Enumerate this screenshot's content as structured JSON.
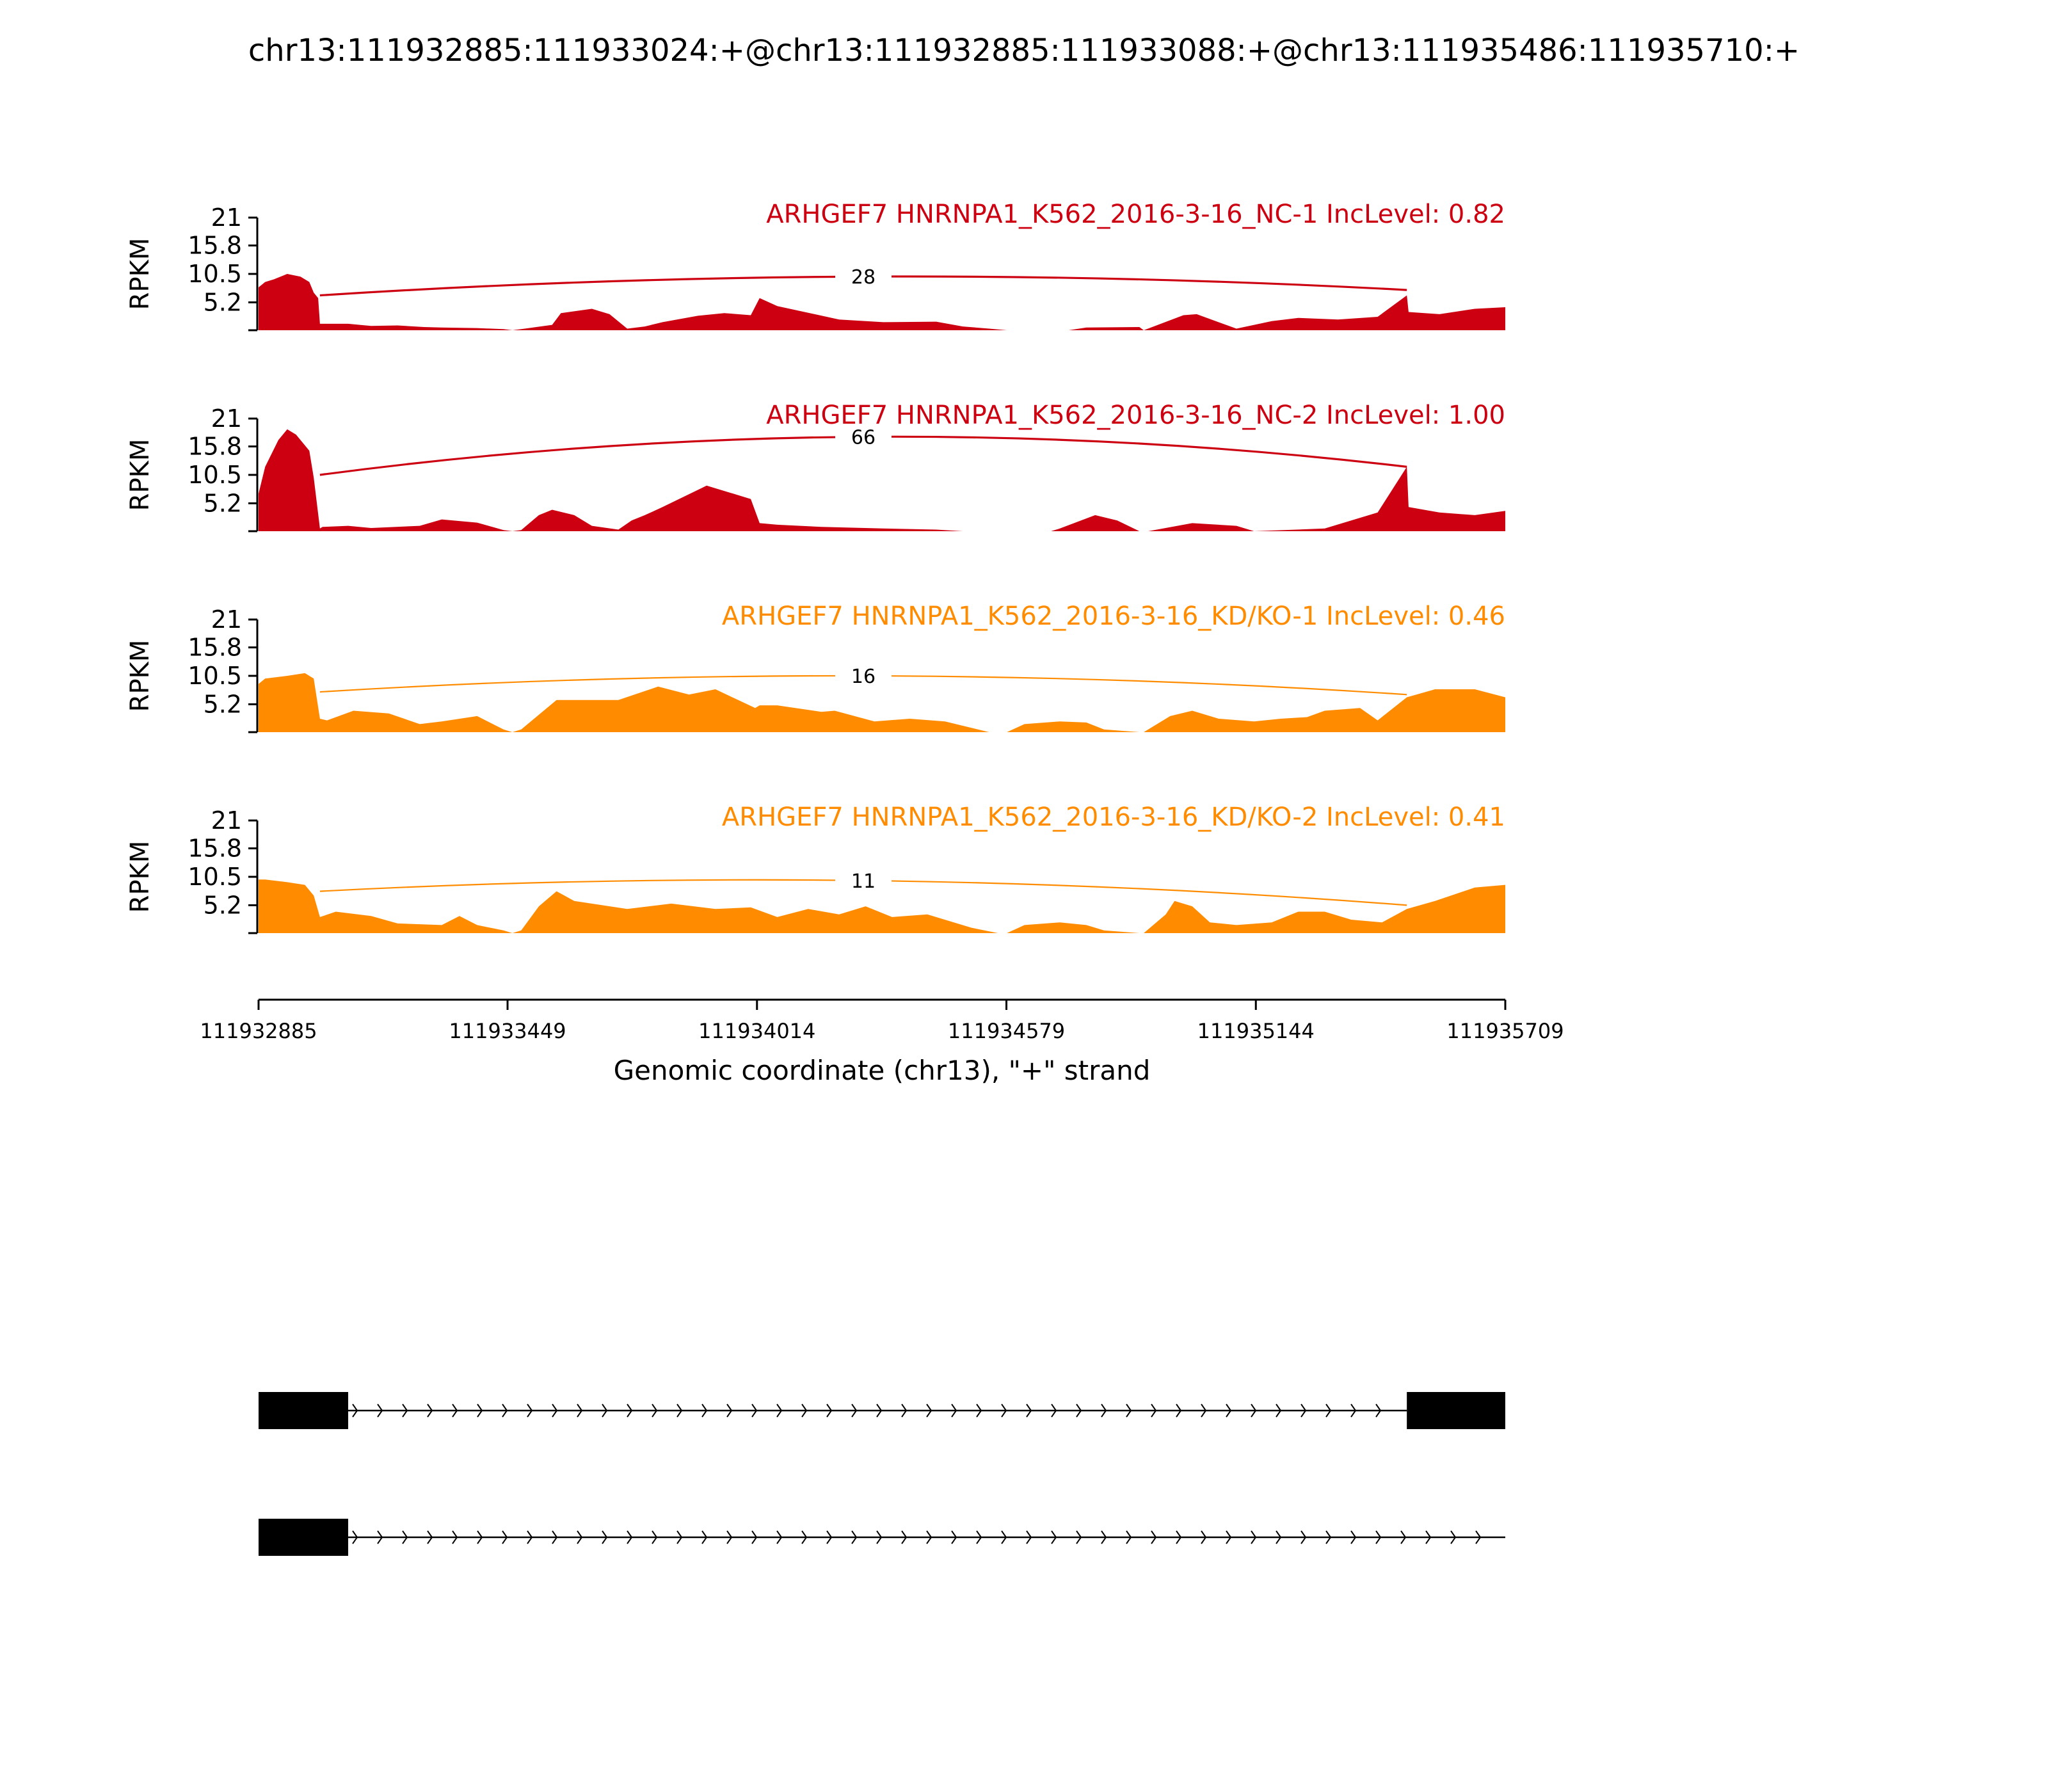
{
  "chart_data": {
    "type": "area",
    "title": "chr13:111932885:111933024:+@chr13:111932885:111933088:+@chr13:111935486:111935710:+",
    "xlabel": "Genomic coordinate (chr13), \"+\" strand",
    "ylabel": "RPKM",
    "xlim": [
      111932885,
      111935709
    ],
    "xticks": [
      "111932885",
      "111933449",
      "111934014",
      "111934579",
      "111935144",
      "111935709"
    ],
    "ylim": [
      0,
      21
    ],
    "yticks": [
      "21",
      "15.8",
      "10.5",
      "5.2"
    ],
    "grid": false,
    "colors": {
      "nc": "#cc0011",
      "kd": "#ff8c00",
      "gene": "#000000",
      "axis": "#000000"
    },
    "panels": [
      {
        "label": "ARHGEF7 HNRNPA1_K562_2016-3-16_NC-1 IncLevel: 0.82",
        "color": "#cc0011",
        "junction": {
          "from": 111933024,
          "to": 111935486,
          "count": "28",
          "start_rpkm": 6.5,
          "end_rpkm": 7.5,
          "peak_rpkm": 10.0
        },
        "coverage": {
          "x": [
            111932885,
            111932900,
            111932920,
            111932950,
            111932980,
            111933000,
            111933010,
            111933020,
            111933024,
            111933030,
            111933088,
            111933140,
            111933200,
            111933260,
            111933300,
            111933380,
            111933440,
            111933460,
            111933480,
            111933550,
            111933570,
            111933640,
            111933680,
            111933720,
            111933760,
            111933800,
            111933880,
            111933940,
            111934000,
            111934020,
            111934060,
            111934200,
            111934300,
            111934420,
            111934480,
            111934540,
            111934580,
            111934720,
            111934760,
            111934880,
            111934890,
            111934980,
            111935010,
            111935100,
            111935180,
            111935240,
            111935330,
            111935420,
            111935486,
            111935490,
            111935560,
            111935640,
            111935709
          ],
          "y": [
            8,
            9,
            9.5,
            10.5,
            10,
            9,
            7,
            6,
            1.2,
            1.2,
            1.2,
            0.8,
            0.9,
            0.6,
            0.5,
            0.4,
            0.2,
            0,
            0.2,
            1.0,
            3.2,
            4.0,
            3.0,
            0.3,
            0.7,
            1.5,
            2.7,
            3.2,
            2.8,
            6.0,
            4.5,
            2.0,
            1.5,
            1.6,
            0.7,
            0.3,
            0,
            0,
            0.5,
            0.6,
            0,
            2.8,
            3.0,
            0.3,
            1.7,
            2.3,
            2.0,
            2.5,
            6.5,
            3.4,
            3.0,
            4.0,
            4.3
          ]
        }
      },
      {
        "label": "ARHGEF7 HNRNPA1_K562_2016-3-16_NC-2 IncLevel: 1.00",
        "color": "#cc0011",
        "junction": {
          "from": 111933024,
          "to": 111935486,
          "count": "66",
          "start_rpkm": 10.5,
          "end_rpkm": 12.0,
          "peak_rpkm": 17.6
        },
        "coverage": {
          "x": [
            111932885,
            111932900,
            111932930,
            111932950,
            111932970,
            111933000,
            111933010,
            111933024,
            111933030,
            111933088,
            111933140,
            111933250,
            111933300,
            111933380,
            111933440,
            111933460,
            111933480,
            111933520,
            111933550,
            111933600,
            111933640,
            111933700,
            111933730,
            111933760,
            111933800,
            111933900,
            111933960,
            111934000,
            111934020,
            111934060,
            111934160,
            111934300,
            111934420,
            111934480,
            111934540,
            111934580,
            111934680,
            111934700,
            111934780,
            111934830,
            111934880,
            111934900,
            111935000,
            111935100,
            111935140,
            111935300,
            111935420,
            111935486,
            111935490,
            111935560,
            111935640,
            111935709
          ],
          "y": [
            7,
            12,
            17,
            19,
            18,
            15,
            10,
            0.5,
            0.8,
            1.0,
            0.6,
            1.0,
            2.2,
            1.6,
            0.2,
            0,
            0.2,
            3.0,
            4.0,
            3.0,
            1.0,
            0.3,
            2.0,
            3.0,
            4.5,
            8.5,
            7.0,
            6.0,
            1.5,
            1.2,
            0.8,
            0.5,
            0.3,
            0,
            0,
            0,
            0,
            0.5,
            3.0,
            2.0,
            0,
            0,
            1.5,
            1.0,
            0,
            0.5,
            3.5,
            12.0,
            4.5,
            3.5,
            3.0,
            3.8
          ]
        }
      },
      {
        "label": "ARHGEF7 HNRNPA1_K562_2016-3-16_KD/KO-1 IncLevel: 0.46",
        "color": "#ff8c00",
        "junction": {
          "from": 111933024,
          "to": 111935486,
          "count": "16",
          "start_rpkm": 7.5,
          "end_rpkm": 7.0,
          "peak_rpkm": 10.5
        },
        "coverage": {
          "x": [
            111932885,
            111932900,
            111932950,
            111932990,
            111933010,
            111933024,
            111933040,
            111933100,
            111933180,
            111933250,
            111933300,
            111933380,
            111933440,
            111933460,
            111933480,
            111933560,
            111933700,
            111933790,
            111933860,
            111933920,
            111934010,
            111934020,
            111934060,
            111934160,
            111934190,
            111934280,
            111934360,
            111934440,
            111934540,
            111934580,
            111934620,
            111934700,
            111934760,
            111934800,
            111934880,
            111934890,
            111934950,
            111935000,
            111935060,
            111935140,
            111935200,
            111935260,
            111935300,
            111935380,
            111935420,
            111935486,
            111935550,
            111935640,
            111935709
          ],
          "y": [
            9,
            10,
            10.5,
            11,
            10,
            2.5,
            2.2,
            4,
            3.5,
            1.5,
            2,
            3,
            0.5,
            0,
            0.5,
            6,
            6,
            8.5,
            7,
            8,
            4.5,
            5.0,
            5.0,
            3.8,
            4.0,
            2.0,
            2.5,
            2.0,
            0,
            0,
            1.5,
            2.0,
            1.8,
            0.5,
            0,
            0,
            3.0,
            4.0,
            2.5,
            2.0,
            2.5,
            2.8,
            4.0,
            4.5,
            2.2,
            6.5,
            8.0,
            8.0,
            6.5
          ]
        }
      },
      {
        "label": "ARHGEF7 HNRNPA1_K562_2016-3-16_KD/KO-2 IncLevel: 0.41",
        "color": "#ff8c00",
        "junction": {
          "from": 111933024,
          "to": 111935486,
          "count": "11",
          "start_rpkm": 7.8,
          "end_rpkm": 5.2,
          "peak_rpkm": 9.8
        },
        "coverage": {
          "x": [
            111932885,
            111932900,
            111932950,
            111932990,
            111933010,
            111933024,
            111933060,
            111933140,
            111933200,
            111933300,
            111933340,
            111933380,
            111933440,
            111933460,
            111933480,
            111933520,
            111933560,
            111933600,
            111933720,
            111933820,
            111933920,
            111934000,
            111934060,
            111934130,
            111934200,
            111934260,
            111934320,
            111934400,
            111934500,
            111934560,
            111934580,
            111934620,
            111934700,
            111934760,
            111934800,
            111934880,
            111934890,
            111934940,
            111934960,
            111935000,
            111935040,
            111935100,
            111935180,
            111935240,
            111935300,
            111935360,
            111935430,
            111935486,
            111935550,
            111935640,
            111935709
          ],
          "y": [
            10,
            10,
            9.5,
            9,
            7,
            3,
            4,
            3.2,
            1.8,
            1.5,
            3.2,
            1.5,
            0.5,
            0,
            0.5,
            5,
            7.8,
            6.0,
            4.5,
            5.5,
            4.5,
            4.8,
            3.0,
            4.5,
            3.5,
            5.0,
            3.0,
            3.5,
            1.0,
            0,
            0,
            1.5,
            2.0,
            1.5,
            0.5,
            0,
            0,
            3.5,
            6.0,
            5.0,
            2.0,
            1.5,
            2.0,
            4.0,
            4.0,
            2.5,
            2.0,
            4.5,
            6.0,
            8.5,
            9.0
          ]
        }
      }
    ],
    "transcripts": [
      {
        "exons": [
          [
            111932885,
            111933088
          ],
          [
            111935486,
            111935709
          ]
        ],
        "intron": [
          111933088,
          111935486
        ],
        "strand": "+"
      },
      {
        "exons": [
          [
            111932885,
            111933088
          ]
        ],
        "intron": [
          111933088,
          111935709
        ],
        "strand": "+"
      }
    ]
  }
}
